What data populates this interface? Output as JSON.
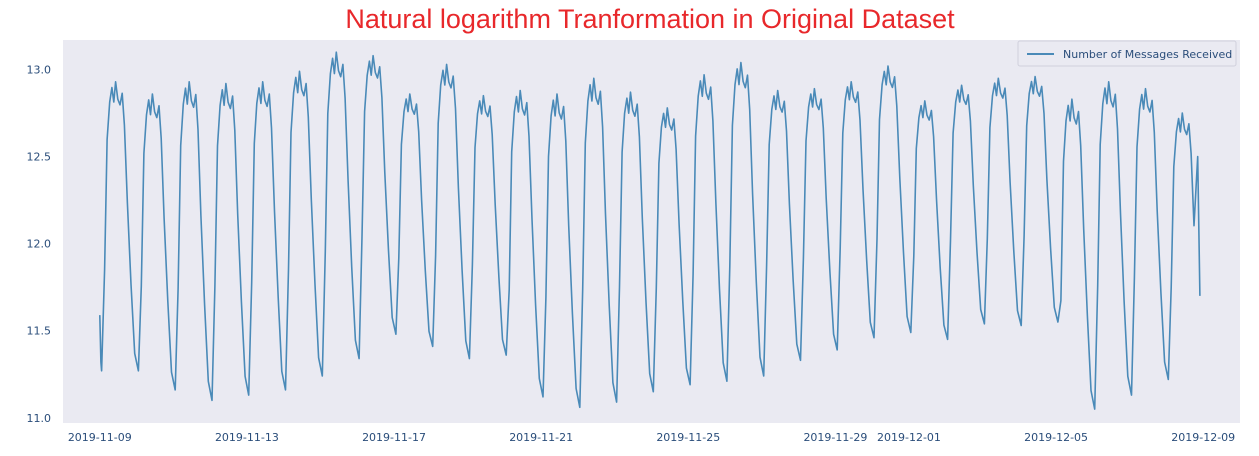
{
  "chart_data": {
    "type": "line",
    "title": "Natural logarithm Tranformation in Original Dataset",
    "xlabel": "",
    "ylabel": "",
    "x_start": "2019-11-09",
    "x_end": "2019-12-09",
    "xlim": [
      "2019-11-08",
      "2019-12-10"
    ],
    "ylim": [
      10.97,
      13.17
    ],
    "x_ticks": [
      "2019-11-09",
      "2019-11-13",
      "2019-11-17",
      "2019-11-21",
      "2019-11-25",
      "2019-11-29",
      "2019-12-01",
      "2019-12-05",
      "2019-12-09"
    ],
    "y_ticks": [
      11.0,
      11.5,
      12.0,
      12.5,
      13.0
    ],
    "y_tick_labels": [
      "11.0",
      "11.5",
      "12.0",
      "12.5",
      "13.0"
    ],
    "grid": false,
    "legend_position": "top-right",
    "colors": {
      "line": "#4a8ab8",
      "background": "#eaeaf2",
      "title": "#e8282b",
      "ticks": "#2a4d7a"
    },
    "series": [
      {
        "name": "Number of Messages Received",
        "granularity": "daily pattern",
        "start_value": 11.59,
        "end_value": 11.7,
        "daily": [
          {
            "date": "2019-11-09",
            "min": 11.27,
            "max": 12.93
          },
          {
            "date": "2019-11-10",
            "min": 11.16,
            "max": 12.86
          },
          {
            "date": "2019-11-11",
            "min": 11.1,
            "max": 12.93
          },
          {
            "date": "2019-11-12",
            "min": 11.13,
            "max": 12.92
          },
          {
            "date": "2019-11-13",
            "min": 11.16,
            "max": 12.93
          },
          {
            "date": "2019-11-14",
            "min": 11.24,
            "max": 12.99
          },
          {
            "date": "2019-11-15",
            "min": 11.34,
            "max": 13.1
          },
          {
            "date": "2019-11-16",
            "min": 11.48,
            "max": 13.08
          },
          {
            "date": "2019-11-17",
            "min": 11.41,
            "max": 12.86
          },
          {
            "date": "2019-11-18",
            "min": 11.34,
            "max": 13.03
          },
          {
            "date": "2019-11-19",
            "min": 11.36,
            "max": 12.85
          },
          {
            "date": "2019-11-20",
            "min": 11.12,
            "max": 12.88
          },
          {
            "date": "2019-11-21",
            "min": 11.06,
            "max": 12.86
          },
          {
            "date": "2019-11-22",
            "min": 11.09,
            "max": 12.95
          },
          {
            "date": "2019-11-23",
            "min": 11.15,
            "max": 12.87
          },
          {
            "date": "2019-11-24",
            "min": 11.19,
            "max": 12.78
          },
          {
            "date": "2019-11-25",
            "min": 11.21,
            "max": 12.97
          },
          {
            "date": "2019-11-26",
            "min": 11.24,
            "max": 13.04
          },
          {
            "date": "2019-11-27",
            "min": 11.33,
            "max": 12.88
          },
          {
            "date": "2019-11-28",
            "min": 11.39,
            "max": 12.89
          },
          {
            "date": "2019-11-29",
            "min": 11.46,
            "max": 12.93
          },
          {
            "date": "2019-11-30",
            "min": 11.49,
            "max": 13.02
          },
          {
            "date": "2019-12-01",
            "min": 11.45,
            "max": 12.82
          },
          {
            "date": "2019-12-02",
            "min": 11.54,
            "max": 12.91
          },
          {
            "date": "2019-12-03",
            "min": 11.53,
            "max": 12.95
          },
          {
            "date": "2019-12-04",
            "min": 11.55,
            "max": 12.96
          },
          {
            "date": "2019-12-05",
            "min": 11.05,
            "max": 12.83
          },
          {
            "date": "2019-12-06",
            "min": 11.13,
            "max": 12.93
          },
          {
            "date": "2019-12-07",
            "min": 11.22,
            "max": 12.89
          },
          {
            "date": "2019-12-08",
            "min": 11.21,
            "max": 12.75
          }
        ]
      }
    ]
  }
}
